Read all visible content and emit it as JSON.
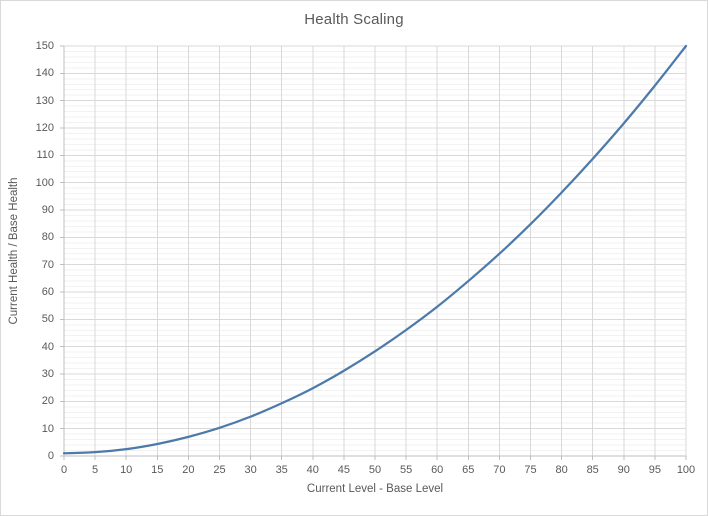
{
  "chart": {
    "title": "Health Scaling",
    "x_axis": {
      "title": "Current Level - Base Level",
      "min": 0,
      "max": 100,
      "tick_step": 5,
      "ticks": [
        0,
        5,
        10,
        15,
        20,
        25,
        30,
        35,
        40,
        45,
        50,
        55,
        60,
        65,
        70,
        75,
        80,
        85,
        90,
        95,
        100
      ]
    },
    "y_axis": {
      "title": "Current Health / Base Health",
      "min": 0,
      "max": 150,
      "tick_step": 10,
      "minor_step": 2,
      "ticks": [
        0,
        10,
        20,
        30,
        40,
        50,
        60,
        70,
        80,
        90,
        100,
        110,
        120,
        130,
        140,
        150
      ]
    },
    "colors": {
      "line": "#4d7aab",
      "major_grid": "#d9d9d9",
      "minor_grid": "#f2f2f2",
      "axis": "#bfbfbf",
      "text": "#595959",
      "border": "#d9d9d9",
      "background": "#ffffff"
    }
  },
  "chart_data": {
    "type": "line",
    "title": "Health Scaling",
    "xlabel": "Current Level - Base Level",
    "ylabel": "Current Health / Base Health",
    "x": [
      0,
      5,
      10,
      15,
      20,
      25,
      30,
      35,
      40,
      45,
      50,
      55,
      60,
      65,
      70,
      75,
      80,
      85,
      90,
      95,
      100
    ],
    "y": [
      1.0,
      1.4,
      2.5,
      4.4,
      7.0,
      10.3,
      14.4,
      19.3,
      24.8,
      31.2,
      38.3,
      46.1,
      54.6,
      64.0,
      74.0,
      84.8,
      96.4,
      108.7,
      121.7,
      135.5,
      150.0
    ],
    "xlim": [
      0,
      100
    ],
    "ylim": [
      0,
      150
    ],
    "x_tick_step": 5,
    "y_tick_step": 10,
    "y_minor_step": 2,
    "grid": true,
    "legend_position": "none"
  }
}
